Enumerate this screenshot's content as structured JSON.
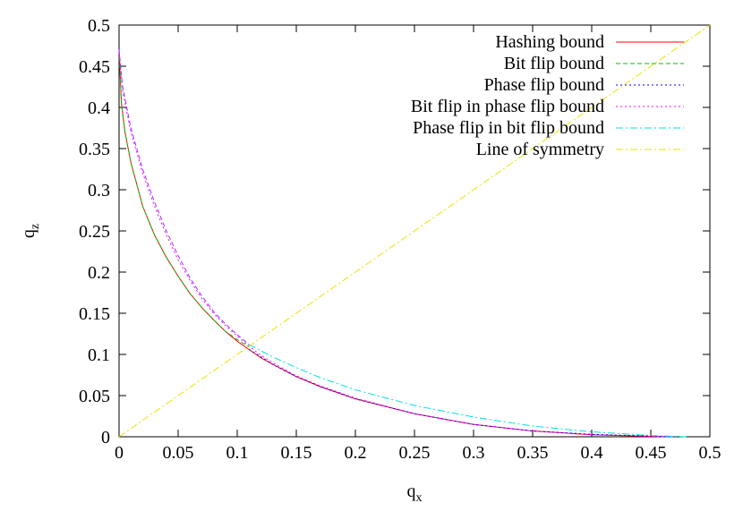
{
  "chart_data": {
    "type": "line",
    "title": "",
    "xlabel": "q",
    "xlabel_subscript": "x",
    "ylabel": "q",
    "ylabel_subscript": "z",
    "xlim": [
      0,
      0.5
    ],
    "ylim": [
      0,
      0.5
    ],
    "x_ticks": [
      "0",
      "0.05",
      "0.1",
      "0.15",
      "0.2",
      "0.25",
      "0.3",
      "0.35",
      "0.4",
      "0.45",
      "0.5"
    ],
    "y_ticks": [
      "0",
      "0.05",
      "0.1",
      "0.15",
      "0.2",
      "0.25",
      "0.3",
      "0.35",
      "0.4",
      "0.45",
      "0.5"
    ],
    "grid": false,
    "legend_position": "top-right",
    "series": [
      {
        "name": "Hashing bound",
        "color": "#ff0000",
        "dash": "solid",
        "points": [
          [
            0,
            0.47
          ],
          [
            0.002,
            0.405
          ],
          [
            0.005,
            0.37
          ],
          [
            0.01,
            0.333
          ],
          [
            0.02,
            0.28
          ],
          [
            0.03,
            0.245
          ],
          [
            0.04,
            0.218
          ],
          [
            0.05,
            0.195
          ],
          [
            0.06,
            0.174
          ],
          [
            0.07,
            0.157
          ],
          [
            0.08,
            0.142
          ],
          [
            0.09,
            0.128
          ],
          [
            0.1,
            0.116
          ],
          [
            0.11,
            0.106
          ],
          [
            0.12,
            0.096
          ],
          [
            0.13,
            0.088
          ],
          [
            0.15,
            0.073
          ],
          [
            0.17,
            0.061
          ],
          [
            0.2,
            0.046
          ],
          [
            0.25,
            0.028
          ],
          [
            0.3,
            0.015
          ],
          [
            0.35,
            0.007
          ],
          [
            0.4,
            0.0025
          ],
          [
            0.45,
            0.0005
          ],
          [
            0.47,
            0
          ]
        ]
      },
      {
        "name": "Bit flip bound",
        "color": "#00c000",
        "dash": "dashed",
        "points": [
          [
            0,
            0.47
          ],
          [
            0.002,
            0.405
          ],
          [
            0.005,
            0.37
          ],
          [
            0.01,
            0.333
          ],
          [
            0.02,
            0.28
          ],
          [
            0.03,
            0.245
          ],
          [
            0.04,
            0.218
          ],
          [
            0.05,
            0.195
          ],
          [
            0.06,
            0.174
          ],
          [
            0.07,
            0.157
          ],
          [
            0.08,
            0.142
          ],
          [
            0.09,
            0.128
          ],
          [
            0.1,
            0.118
          ],
          [
            0.11,
            0.109
          ]
        ]
      },
      {
        "name": "Phase flip bound",
        "color": "#0000ff",
        "dash": "dotted",
        "points": [
          [
            0.11,
            0.106
          ],
          [
            0.13,
            0.088
          ],
          [
            0.15,
            0.073
          ],
          [
            0.17,
            0.061
          ],
          [
            0.2,
            0.046
          ],
          [
            0.25,
            0.028
          ],
          [
            0.3,
            0.015
          ],
          [
            0.35,
            0.007
          ],
          [
            0.4,
            0.003
          ],
          [
            0.45,
            0.0008
          ],
          [
            0.47,
            0
          ]
        ]
      },
      {
        "name": "Bit flip in phase flip bound",
        "color": "#ff00ff",
        "dash": "dotted",
        "points": [
          [
            0,
            0.47
          ],
          [
            0.003,
            0.42
          ],
          [
            0.01,
            0.37
          ],
          [
            0.02,
            0.32
          ],
          [
            0.03,
            0.28
          ],
          [
            0.04,
            0.245
          ],
          [
            0.05,
            0.215
          ],
          [
            0.06,
            0.19
          ],
          [
            0.07,
            0.168
          ],
          [
            0.08,
            0.15
          ],
          [
            0.09,
            0.135
          ],
          [
            0.1,
            0.122
          ],
          [
            0.11,
            0.11
          ],
          [
            0.12,
            0.099
          ],
          [
            0.13,
            0.09
          ],
          [
            0.15,
            0.074
          ],
          [
            0.17,
            0.062
          ],
          [
            0.2,
            0.047
          ],
          [
            0.25,
            0.028
          ],
          [
            0.3,
            0.015
          ],
          [
            0.35,
            0.007
          ],
          [
            0.4,
            0.0025
          ],
          [
            0.45,
            0.0005
          ],
          [
            0.47,
            0
          ]
        ]
      },
      {
        "name": "Phase flip in bit flip bound",
        "color": "#00e0e0",
        "dash": "dashdot",
        "points": [
          [
            0.11,
            0.112
          ],
          [
            0.13,
            0.097
          ],
          [
            0.15,
            0.084
          ],
          [
            0.17,
            0.072
          ],
          [
            0.2,
            0.057
          ],
          [
            0.25,
            0.038
          ],
          [
            0.3,
            0.024
          ],
          [
            0.35,
            0.013
          ],
          [
            0.4,
            0.006
          ],
          [
            0.45,
            0.0015
          ],
          [
            0.48,
            0
          ]
        ]
      },
      {
        "name": "Line of symmetry",
        "color": "#e6e600",
        "dash": "dashdot",
        "points": [
          [
            0,
            0
          ],
          [
            0.5,
            0.5
          ]
        ]
      },
      {
        "name": "Phase flip bound",
        "color": "#a030ff",
        "dash": "dashed",
        "points": [
          [
            0,
            0.47
          ],
          [
            0.003,
            0.425
          ],
          [
            0.01,
            0.375
          ],
          [
            0.02,
            0.325
          ],
          [
            0.03,
            0.285
          ],
          [
            0.04,
            0.25
          ],
          [
            0.05,
            0.22
          ],
          [
            0.06,
            0.193
          ],
          [
            0.07,
            0.171
          ],
          [
            0.08,
            0.152
          ],
          [
            0.09,
            0.137
          ],
          [
            0.1,
            0.124
          ],
          [
            0.11,
            0.112
          ]
        ]
      }
    ]
  }
}
